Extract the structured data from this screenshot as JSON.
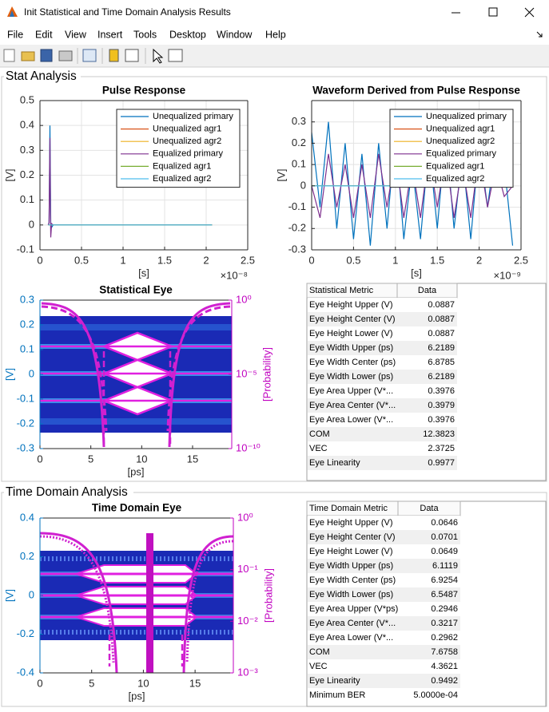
{
  "window": {
    "title": "Init Statistical and Time Domain Analysis Results",
    "menu": [
      "File",
      "Edit",
      "View",
      "Insert",
      "Tools",
      "Desktop",
      "Window",
      "Help"
    ]
  },
  "stat_panel": {
    "title": "Stat Analysis",
    "charts": [
      {
        "type": "line",
        "title": "Pulse Response",
        "xlabel": "[s]",
        "ylabel": "[V]",
        "x_exponent": "×10⁻⁸",
        "xlim": [
          0,
          2.5
        ],
        "ylim": [
          -0.1,
          0.5
        ],
        "xticks": [
          0,
          0.5,
          1,
          1.5,
          2,
          2.5
        ],
        "yticks": [
          -0.1,
          0,
          0.1,
          0.2,
          0.3,
          0.4,
          0.5
        ],
        "grid": true,
        "legend": "northeast",
        "x": [
          0.1,
          0.11,
          0.12,
          0.125,
          0.13,
          0.14,
          0.16,
          2.07
        ],
        "series": [
          {
            "name": "Unequalized primary",
            "color": "#0072BD",
            "values": [
              0,
              0.01,
              0.4,
              0.2,
              0.01,
              -0.01,
              0,
              0
            ]
          },
          {
            "name": "Unequalized agr1",
            "color": "#D95319",
            "values": [
              0,
              0,
              0,
              0,
              0,
              0,
              0,
              0
            ]
          },
          {
            "name": "Unequalized agr2",
            "color": "#EDB120",
            "values": [
              0,
              0,
              0,
              0,
              0,
              0,
              0,
              0
            ]
          },
          {
            "name": "Equalized primary",
            "color": "#7E2F8E",
            "values": [
              0,
              0.01,
              0.35,
              0.1,
              -0.05,
              0.005,
              0,
              0
            ]
          },
          {
            "name": "Equalized agr1",
            "color": "#77AC30",
            "values": [
              0,
              0,
              0,
              0,
              0,
              0,
              0,
              0
            ]
          },
          {
            "name": "Equalized agr2",
            "color": "#4DBEEE",
            "values": [
              0,
              0,
              0,
              0,
              0,
              0,
              0,
              0
            ]
          }
        ]
      },
      {
        "type": "line",
        "title": "Waveform Derived from Pulse Response",
        "xlabel": "[s]",
        "ylabel": "[V]",
        "x_exponent": "×10⁻⁹",
        "xlim": [
          0,
          2.5
        ],
        "ylim": [
          -0.3,
          0.4
        ],
        "xticks": [
          0,
          0.5,
          1,
          1.5,
          2,
          2.5
        ],
        "yticks": [
          -0.3,
          -0.2,
          -0.1,
          0,
          0.1,
          0.2,
          0.3
        ],
        "grid": true,
        "legend": "northeast",
        "x": [
          0,
          0.1,
          0.2,
          0.3,
          0.4,
          0.5,
          0.6,
          0.7,
          0.8,
          0.9,
          1,
          1.1,
          1.2,
          1.3,
          1.4,
          1.5,
          1.6,
          1.7,
          1.8,
          1.9,
          2,
          2.1,
          2.2,
          2.3,
          2.4
        ],
        "series": [
          {
            "name": "Unequalized primary",
            "color": "#0072BD",
            "values": [
              0.25,
              -0.1,
              0.3,
              -0.2,
              0.2,
              -0.25,
              0.15,
              -0.28,
              0.2,
              -0.2,
              0.25,
              -0.25,
              0.1,
              -0.25,
              0.2,
              -0.2,
              0.25,
              -0.2,
              0.15,
              -0.25,
              0.2,
              -0.1,
              0.2,
              0.1,
              -0.28
            ]
          },
          {
            "name": "Unequalized agr1",
            "color": "#D95319",
            "values": [
              0,
              0,
              0,
              0,
              0,
              0,
              0,
              0,
              0,
              0,
              0,
              0,
              0,
              0,
              0,
              0,
              0,
              0,
              0,
              0,
              0,
              0,
              0,
              0,
              0
            ]
          },
          {
            "name": "Unequalized agr2",
            "color": "#EDB120",
            "values": [
              0,
              0,
              0,
              0,
              0,
              0,
              0,
              0,
              0,
              0,
              0,
              0,
              0,
              0,
              0,
              0,
              0,
              0,
              0,
              0,
              0,
              0,
              0,
              0,
              0
            ]
          },
          {
            "name": "Equalized primary",
            "color": "#7E2F8E",
            "values": [
              0,
              -0.15,
              0.15,
              -0.1,
              0.1,
              -0.15,
              0.1,
              -0.15,
              0.15,
              -0.1,
              0.15,
              -0.15,
              0.1,
              -0.15,
              0.15,
              -0.1,
              0.15,
              -0.15,
              0.1,
              -0.15,
              0.15,
              -0.1,
              0.1,
              -0.05,
              0
            ]
          },
          {
            "name": "Equalized agr1",
            "color": "#77AC30",
            "values": [
              0,
              0,
              0,
              0,
              0,
              0,
              0,
              0,
              0,
              0,
              0,
              0,
              0,
              0,
              0,
              0,
              0,
              0,
              0,
              0,
              0,
              0,
              0,
              0,
              0
            ]
          },
          {
            "name": "Equalized agr2",
            "color": "#4DBEEE",
            "values": [
              0,
              0,
              0,
              0,
              0,
              0,
              0,
              0,
              0,
              0,
              0,
              0,
              0,
              0,
              0,
              0,
              0,
              0,
              0,
              0,
              0,
              0,
              0,
              0,
              0
            ]
          }
        ]
      },
      {
        "type": "eye",
        "title": "Statistical Eye",
        "xlabel": "[ps]",
        "ylabel": "[V]",
        "y2label": "[Probability]",
        "ycolor": "#0072BD",
        "y2color": "#C000C0",
        "xlim": [
          0,
          18.85
        ],
        "ylim": [
          -0.3,
          0.3
        ],
        "xticks": [
          0,
          5,
          10,
          15
        ],
        "yticks": [
          -0.3,
          -0.2,
          -0.1,
          0,
          0.1,
          0.2,
          0.3
        ],
        "y2scale": "log",
        "y2lim": [
          1e-10,
          1
        ],
        "y2ticks": [
          {
            "value": 1e-10,
            "label": "10⁻¹⁰"
          },
          {
            "value": 1e-05,
            "label": "10⁻⁵"
          },
          {
            "value": 1,
            "label": "10⁰"
          }
        ],
        "grid": false
      }
    ],
    "table": {
      "header": [
        "Statistical Metric",
        "Data"
      ],
      "rows": [
        [
          "Eye Height Upper (V)",
          "0.0887"
        ],
        [
          "Eye Height Center (V)",
          "0.0887"
        ],
        [
          "Eye Height Lower (V)",
          "0.0887"
        ],
        [
          "Eye Width Upper (ps)",
          "6.2189"
        ],
        [
          "Eye Width Center (ps)",
          "6.8785"
        ],
        [
          "Eye Width Lower (ps)",
          "6.2189"
        ],
        [
          "Eye Area Upper (V*...",
          "0.3976"
        ],
        [
          "Eye Area Center (V*...",
          "0.3979"
        ],
        [
          "Eye Area Lower (V*...",
          "0.3976"
        ],
        [
          "COM",
          "12.3823"
        ],
        [
          "VEC",
          "2.3725"
        ],
        [
          "Eye Linearity",
          "0.9977"
        ]
      ]
    }
  },
  "time_panel": {
    "title": "Time Domain Analysis",
    "charts": [
      {
        "type": "eye",
        "title": "Time Domain Eye",
        "xlabel": "[ps]",
        "ylabel": "[V]",
        "y2label": "[Probability]",
        "ycolor": "#0072BD",
        "y2color": "#C000C0",
        "xlim": [
          0,
          18.7
        ],
        "ylim": [
          -0.4,
          0.4
        ],
        "xticks": [
          0,
          5,
          10,
          15
        ],
        "yticks": [
          -0.4,
          -0.2,
          0,
          0.2,
          0.4
        ],
        "y2scale": "log",
        "y2lim": [
          0.001,
          1
        ],
        "y2ticks": [
          {
            "value": 0.001,
            "label": "10⁻³"
          },
          {
            "value": 0.01,
            "label": "10⁻²"
          },
          {
            "value": 0.1,
            "label": "10⁻¹"
          },
          {
            "value": 1,
            "label": "10⁰"
          }
        ],
        "grid": false
      }
    ],
    "table": {
      "header": [
        "Time Domain Metric",
        "Data"
      ],
      "rows": [
        [
          "Eye Height Upper (V)",
          "0.0646"
        ],
        [
          "Eye Height Center (V)",
          "0.0701"
        ],
        [
          "Eye Height Lower (V)",
          "0.0649"
        ],
        [
          "Eye Width Upper (ps)",
          "6.1119"
        ],
        [
          "Eye Width Center (ps)",
          "6.9254"
        ],
        [
          "Eye Width Lower (ps)",
          "6.5487"
        ],
        [
          "Eye Area Upper (V*ps)",
          "0.2946"
        ],
        [
          "Eye Area Center (V*...",
          "0.3217"
        ],
        [
          "Eye Area Lower (V*...",
          "0.2962"
        ],
        [
          "COM",
          "7.6758"
        ],
        [
          "VEC",
          "4.3621"
        ],
        [
          "Eye Linearity",
          "0.9492"
        ],
        [
          "Minimum BER",
          "5.0000e-04"
        ]
      ]
    }
  }
}
